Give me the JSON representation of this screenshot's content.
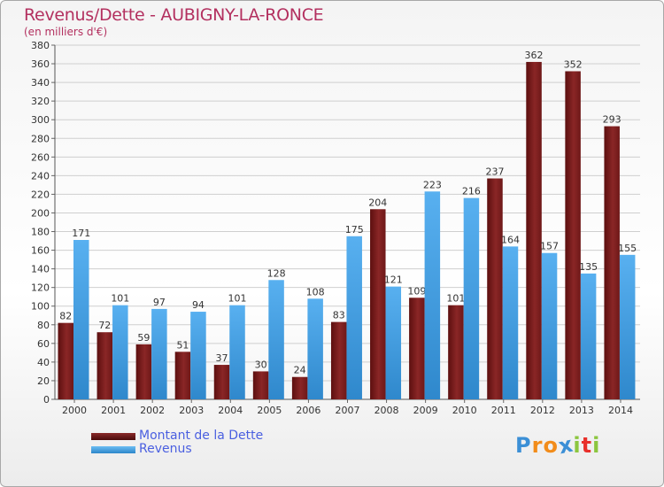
{
  "chart_data": {
    "type": "bar",
    "title": "Revenus/Dette - AUBIGNY-LA-RONCE",
    "subtitle": "(en milliers d'€)",
    "xlabel": "",
    "ylabel": "",
    "ylim": [
      0,
      380
    ],
    "ytick_step": 20,
    "grid": true,
    "legend_position": "bottom-left",
    "categories": [
      "2000",
      "2001",
      "2002",
      "2003",
      "2004",
      "2005",
      "2006",
      "2007",
      "2008",
      "2009",
      "2010",
      "2011",
      "2012",
      "2013",
      "2014"
    ],
    "series": [
      {
        "name": "Montant de la Dette",
        "color": "#7a1e1e",
        "values": [
          82,
          72,
          59,
          51,
          37,
          30,
          24,
          83,
          204,
          109,
          101,
          237,
          362,
          352,
          293
        ]
      },
      {
        "name": "Revenus",
        "color": "#48a3e6",
        "values": [
          171,
          101,
          97,
          94,
          101,
          128,
          108,
          175,
          121,
          223,
          216,
          164,
          157,
          135,
          155
        ]
      }
    ]
  },
  "brand": {
    "letters": [
      "P",
      "r",
      "o",
      "x",
      "i",
      "t",
      "i"
    ],
    "colors": [
      "#3b8fd6",
      "#f28c1a",
      "#f28c1a",
      "#3b8fd6",
      "#8cc63f",
      "#e8302b",
      "#8cc63f"
    ]
  }
}
